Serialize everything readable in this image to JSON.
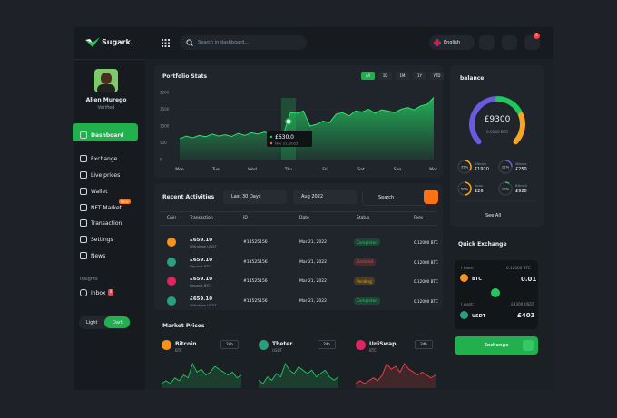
{
  "brand": "Sugark.",
  "search_placeholder": "Search in dashboard...",
  "language": "English",
  "notifications": "2",
  "profile": {
    "name": "Allen Murego",
    "status": "Verified"
  },
  "nav": [
    {
      "label": "Dashboard"
    },
    {
      "label": "Exchange"
    },
    {
      "label": "Live prices"
    },
    {
      "label": "Wallet"
    },
    {
      "label": "NFT Market",
      "badge": "New"
    },
    {
      "label": "Transaction"
    },
    {
      "label": "Settings"
    },
    {
      "label": "News"
    }
  ],
  "insights": {
    "title": "Insights",
    "items": [
      {
        "label": "Inbox",
        "badge": "8"
      }
    ]
  },
  "theme": [
    "Light",
    "Dark"
  ],
  "portfolio": {
    "title": "Portfolio Stats",
    "ranges": [
      "All",
      "1D",
      "1M",
      "1Y",
      "YTD"
    ],
    "x_labels": [
      "Mon",
      "Tue",
      "Wed",
      "Thu",
      "Fri",
      "Sat",
      "Sun",
      "Mon"
    ],
    "ylim": [
      0,
      2000
    ],
    "yticks": [
      0,
      500,
      1000,
      1500,
      2000
    ],
    "values": [
      620,
      700,
      650,
      720,
      680,
      760,
      700,
      740,
      690,
      780,
      720,
      800,
      760,
      820,
      780,
      850,
      800,
      1400,
      1380,
      1450,
      1000,
      1050,
      1150,
      1100,
      1350,
      1400,
      1300,
      1450,
      1420,
      1500,
      1380,
      1480,
      1450,
      1400,
      1500,
      1550,
      1480,
      1600,
      1650,
      1850
    ],
    "tooltip": {
      "value": "£630.0",
      "date": "Nov 21, 2022"
    }
  },
  "activities": {
    "title": "Recent Activities",
    "period": "Last 30 Days",
    "month": "Aug 2022",
    "search": "Search",
    "columns": [
      "Coin",
      "Transaction",
      "ID",
      "Date",
      "Status",
      "Fees"
    ],
    "rows": [
      {
        "coin_color": "#f7931a",
        "amount": "£659.10",
        "type": "Withdraw USDT",
        "id": "#14525156",
        "date": "Mar 21, 2022",
        "status": "Completed",
        "fees": "0.12000 BTC"
      },
      {
        "coin_color": "#26a17b",
        "amount": "£659.10",
        "type": "Deposit BTC",
        "id": "#14525156",
        "date": "Mar 21, 2022",
        "status": "Declined",
        "fees": "0.12000 BTC"
      },
      {
        "coin_color": "#e0245e",
        "amount": "£659.10",
        "type": "Deposit BTC",
        "id": "#14525156",
        "date": "Mar 21, 2022",
        "status": "Pending",
        "fees": "0.12000 BTC"
      },
      {
        "coin_color": "#26a17b",
        "amount": "£659.10",
        "type": "Withdraw USDT",
        "id": "#14525156",
        "date": "Mar 21, 2022",
        "status": "Completed",
        "fees": "0.12000 BTC"
      }
    ]
  },
  "market": {
    "title": "Market Prices",
    "coins": [
      {
        "name": "Bitcoin",
        "symbol": "BTC",
        "period": "24h",
        "icon_color": "#f7931a",
        "color": "#22c55e",
        "values": [
          5,
          6,
          5,
          7,
          6,
          8,
          7,
          12,
          9,
          10,
          8,
          9,
          11,
          10,
          9,
          8,
          9,
          7,
          8
        ]
      },
      {
        "name": "Theter",
        "symbol": "USDT",
        "period": "24h",
        "icon_color": "#26a17b",
        "color": "#22c55e",
        "values": [
          6,
          5,
          7,
          6,
          8,
          7,
          11,
          9,
          8,
          10,
          9,
          8,
          9,
          7,
          8,
          9,
          7,
          6,
          7
        ]
      },
      {
        "name": "UniSwap",
        "symbol": "BTC",
        "period": "24h",
        "icon_color": "#e0245e",
        "color": "#ef4444",
        "values": [
          5,
          6,
          5,
          6,
          7,
          6,
          8,
          12,
          10,
          11,
          9,
          12,
          10,
          9,
          8,
          9,
          8,
          7,
          8
        ]
      }
    ]
  },
  "balance": {
    "title": "balance",
    "amount": "£9300",
    "btc": "0.0140 BTC",
    "segments": [
      {
        "color": "#6a5ae0",
        "value": 50
      },
      {
        "color": "#22c55e",
        "value": 25
      },
      {
        "color": "#f5a623",
        "value": 25
      }
    ],
    "assets": [
      {
        "name": "Bitcoin",
        "amount": "£1920",
        "percent": 35,
        "percent_label": "35%",
        "color": "#f5a623"
      },
      {
        "name": "Waves",
        "amount": "£250",
        "percent": 25,
        "percent_label": "25%",
        "color": "#6a5ae0"
      },
      {
        "name": "Avax",
        "amount": "£26",
        "percent": 50,
        "percent_label": "50%",
        "color": "#f5a623"
      },
      {
        "name": "Bitcoin",
        "amount": "£920",
        "percent": 10,
        "percent_label": "10%",
        "color": "#22c55e"
      }
    ],
    "see_all": "See All"
  },
  "exchange": {
    "title": "Quick Exchange",
    "have_label": "I have:",
    "have_balance": "0.12000 BTC",
    "have_coin": "BTC",
    "have_amount": "0.01",
    "want_label": "I want:",
    "want_balance": "£9300 USDT",
    "want_coin": "USDT",
    "want_amount": "£403",
    "button": "Exchange"
  }
}
